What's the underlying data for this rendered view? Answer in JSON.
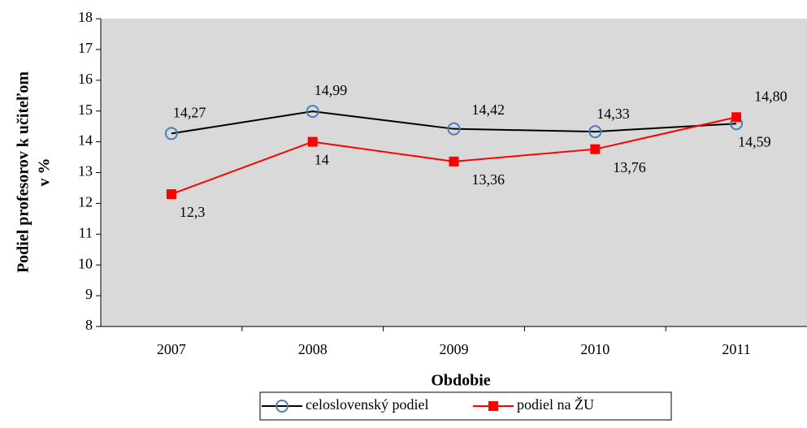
{
  "chart_data": {
    "type": "line",
    "ylabel": [
      "Podiel profesorov k učiteľom",
      "v %"
    ],
    "xlabel": "Obdobie",
    "categories": [
      "2007",
      "2008",
      "2009",
      "2010",
      "2011"
    ],
    "series": [
      {
        "name": "celoslovenský podiel",
        "color": "#000000",
        "marker": "circle",
        "marker_color": "#4a7ebb",
        "values": [
          14.27,
          14.99,
          14.42,
          14.33,
          14.59
        ],
        "value_labels": [
          "14,27",
          "14,99",
          "14,42",
          "14,33",
          "14,59"
        ]
      },
      {
        "name": "podiel na ŽU",
        "color": "#ff0000",
        "marker": "square",
        "marker_color": "#ff0000",
        "values": [
          12.3,
          14,
          13.36,
          13.76,
          14.8
        ],
        "value_labels": [
          "12,3",
          "14",
          "13,36",
          "13,76",
          "14,80"
        ]
      }
    ],
    "ylim": [
      8,
      18
    ],
    "yticks": [
      8,
      9,
      10,
      11,
      12,
      13,
      14,
      15,
      16,
      17,
      18
    ],
    "plot_background": "#d9d9d9",
    "legend": "bottom"
  }
}
